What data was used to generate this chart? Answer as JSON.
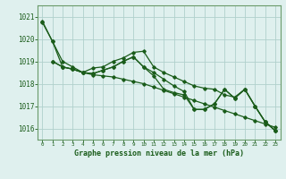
{
  "title": "Graphe pression niveau de la mer (hPa)",
  "xlim": [
    -0.5,
    23.5
  ],
  "ylim": [
    1015.5,
    1021.5
  ],
  "yticks": [
    1016,
    1017,
    1018,
    1019,
    1020,
    1021
  ],
  "xtick_labels": [
    "0",
    "1",
    "2",
    "3",
    "4",
    "5",
    "6",
    "7",
    "8",
    "9",
    "10",
    "11",
    "12",
    "13",
    "14",
    "15",
    "16",
    "17",
    "18",
    "19",
    "20",
    "21",
    "22",
    "23"
  ],
  "xtick_positions": [
    0,
    1,
    2,
    3,
    4,
    5,
    6,
    7,
    8,
    9,
    10,
    11,
    12,
    13,
    14,
    15,
    16,
    17,
    18,
    19,
    20,
    21,
    22,
    23
  ],
  "background_color": "#dff0ee",
  "grid_color": "#b0d0cc",
  "line_color": "#1a5c1a",
  "spine_color": "#6a9a6a",
  "lines": [
    {
      "x": [
        0,
        1,
        2,
        3,
        4,
        5,
        6,
        7,
        8,
        9,
        10,
        11,
        12,
        13,
        14,
        15,
        16,
        17,
        18,
        19,
        20,
        21,
        22,
        23
      ],
      "y": [
        1020.8,
        1019.9,
        1019.0,
        1018.75,
        1018.5,
        1018.7,
        1018.75,
        1019.0,
        1019.15,
        1019.4,
        1019.45,
        1018.75,
        1018.5,
        1018.3,
        1018.1,
        1017.9,
        1017.8,
        1017.75,
        1017.5,
        1017.4,
        1017.75,
        1017.0,
        1016.3,
        1015.9
      ]
    },
    {
      "x": [
        1,
        2,
        3,
        4,
        5,
        6,
        7,
        8,
        9,
        10,
        11,
        12,
        13,
        14,
        15,
        16,
        17,
        18,
        19,
        20,
        21,
        22,
        23
      ],
      "y": [
        1019.0,
        1018.75,
        1018.65,
        1018.5,
        1018.45,
        1018.6,
        1018.75,
        1019.0,
        1019.2,
        1018.75,
        1018.5,
        1018.2,
        1017.9,
        1017.65,
        1016.85,
        1016.85,
        1017.1,
        1017.75,
        1017.35,
        1017.75,
        1017.0,
        1016.3,
        1015.9
      ]
    },
    {
      "x": [
        1,
        2,
        3,
        4,
        5,
        6,
        7,
        8,
        9,
        10,
        11,
        12,
        13,
        14,
        15,
        16,
        17,
        18,
        19,
        20,
        21,
        22,
        23
      ],
      "y": [
        1019.0,
        1018.75,
        1018.65,
        1018.5,
        1018.45,
        1018.6,
        1018.75,
        1019.0,
        1019.2,
        1018.75,
        1018.35,
        1017.75,
        1017.6,
        1017.5,
        1016.85,
        1016.85,
        1017.1,
        1017.75,
        1017.35,
        1017.75,
        1017.0,
        1016.3,
        1015.9
      ]
    },
    {
      "x": [
        0,
        1,
        2,
        3,
        4,
        5,
        6,
        7,
        8,
        9,
        10,
        11,
        12,
        13,
        14,
        15,
        16,
        17,
        18,
        19,
        20,
        21,
        22,
        23
      ],
      "y": [
        1020.75,
        1019.9,
        1018.75,
        1018.65,
        1018.5,
        1018.4,
        1018.35,
        1018.3,
        1018.2,
        1018.1,
        1018.0,
        1017.85,
        1017.7,
        1017.55,
        1017.4,
        1017.25,
        1017.1,
        1016.95,
        1016.8,
        1016.65,
        1016.5,
        1016.35,
        1016.2,
        1016.05
      ]
    }
  ]
}
